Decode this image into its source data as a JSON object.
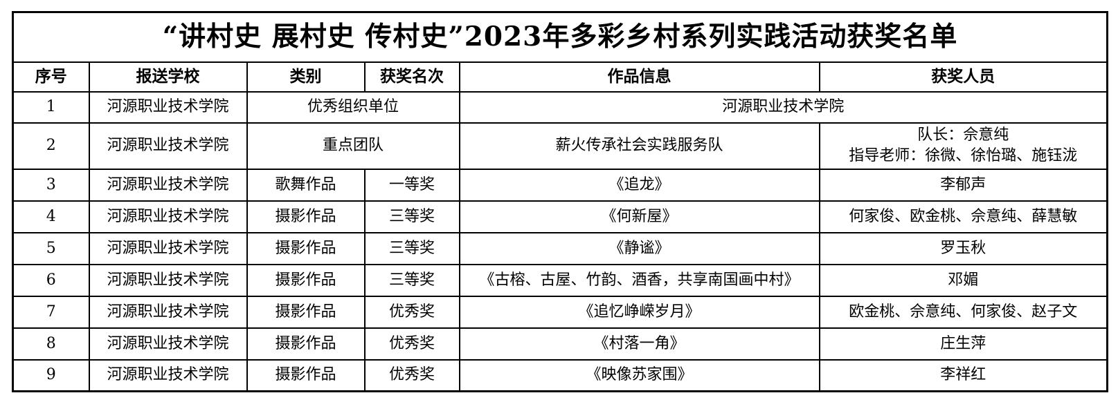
{
  "title": "“讲村史 展村史 传村史”2023年多彩乡村系列实践活动获奖名单",
  "colors": {
    "background": "#ffffff",
    "border": "#000000",
    "text": "#000000"
  },
  "table": {
    "headers": [
      "序号",
      "报送学校",
      "类别",
      "获奖名次",
      "作品信息",
      "获奖人员"
    ],
    "rows": [
      {
        "cells": [
          {
            "text": "1"
          },
          {
            "text": "河源职业技术学院"
          },
          {
            "text": "优秀组织单位",
            "colspan": 2
          },
          {
            "text": "河源职业技术学院",
            "colspan": 2
          }
        ]
      },
      {
        "cells": [
          {
            "text": "2"
          },
          {
            "text": "河源职业技术学院"
          },
          {
            "text": "重点团队",
            "colspan": 2
          },
          {
            "text": "薪火传承社会实践服务队"
          },
          {
            "text": "队长：佘意纯\n指导老师：徐微、徐怡璐、施钰泷"
          }
        ]
      },
      {
        "cells": [
          {
            "text": "3"
          },
          {
            "text": "河源职业技术学院"
          },
          {
            "text": "歌舞作品"
          },
          {
            "text": "一等奖"
          },
          {
            "text": "《追龙》"
          },
          {
            "text": "李郁声"
          }
        ]
      },
      {
        "cells": [
          {
            "text": "4"
          },
          {
            "text": "河源职业技术学院"
          },
          {
            "text": "摄影作品"
          },
          {
            "text": "三等奖"
          },
          {
            "text": "《何新屋》"
          },
          {
            "text": "何家俊、欧金桃、佘意纯、薛慧敏"
          }
        ]
      },
      {
        "cells": [
          {
            "text": "5"
          },
          {
            "text": "河源职业技术学院"
          },
          {
            "text": "摄影作品"
          },
          {
            "text": "三等奖"
          },
          {
            "text": "《静谧》"
          },
          {
            "text": "罗玉秋"
          }
        ]
      },
      {
        "cells": [
          {
            "text": "6"
          },
          {
            "text": "河源职业技术学院"
          },
          {
            "text": "摄影作品"
          },
          {
            "text": "三等奖"
          },
          {
            "text": "《古榕、古屋、竹韵、酒香，共享南国画中村》"
          },
          {
            "text": "邓媚"
          }
        ]
      },
      {
        "cells": [
          {
            "text": "7"
          },
          {
            "text": "河源职业技术学院"
          },
          {
            "text": "摄影作品"
          },
          {
            "text": "优秀奖"
          },
          {
            "text": "《追忆峥嵘岁月》"
          },
          {
            "text": "欧金桃、佘意纯、何家俊、赵子文"
          }
        ]
      },
      {
        "cells": [
          {
            "text": "8"
          },
          {
            "text": "河源职业技术学院"
          },
          {
            "text": "摄影作品"
          },
          {
            "text": "优秀奖"
          },
          {
            "text": "《村落一角》"
          },
          {
            "text": "庄生萍"
          }
        ]
      },
      {
        "cells": [
          {
            "text": "9"
          },
          {
            "text": "河源职业技术学院"
          },
          {
            "text": "摄影作品"
          },
          {
            "text": "优秀奖"
          },
          {
            "text": "《映像苏家围》"
          },
          {
            "text": "李祥红"
          }
        ]
      }
    ]
  }
}
